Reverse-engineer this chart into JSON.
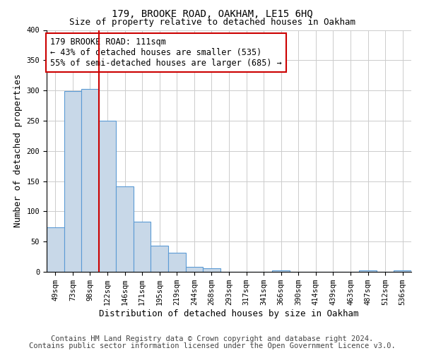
{
  "title": "179, BROOKE ROAD, OAKHAM, LE15 6HQ",
  "subtitle": "Size of property relative to detached houses in Oakham",
  "xlabel": "Distribution of detached houses by size in Oakham",
  "ylabel": "Number of detached properties",
  "bar_labels": [
    "49sqm",
    "73sqm",
    "98sqm",
    "122sqm",
    "146sqm",
    "171sqm",
    "195sqm",
    "219sqm",
    "244sqm",
    "268sqm",
    "293sqm",
    "317sqm",
    "341sqm",
    "366sqm",
    "390sqm",
    "414sqm",
    "439sqm",
    "463sqm",
    "487sqm",
    "512sqm",
    "536sqm"
  ],
  "bar_heights": [
    73,
    299,
    303,
    250,
    141,
    83,
    43,
    31,
    8,
    6,
    0,
    0,
    0,
    2,
    0,
    0,
    0,
    0,
    2,
    0,
    2
  ],
  "bar_color": "#c8d8e8",
  "bar_edge_color": "#5b9bd5",
  "vline_x_index": 2.5,
  "vline_color": "#cc0000",
  "annotation_line1": "179 BROOKE ROAD: 111sqm",
  "annotation_line2": "← 43% of detached houses are smaller (535)",
  "annotation_line3": "55% of semi-detached houses are larger (685) →",
  "annotation_box_color": "#ffffff",
  "annotation_box_edge": "#cc0000",
  "ylim": [
    0,
    400
  ],
  "yticks": [
    0,
    50,
    100,
    150,
    200,
    250,
    300,
    350,
    400
  ],
  "footer_line1": "Contains HM Land Registry data © Crown copyright and database right 2024.",
  "footer_line2": "Contains public sector information licensed under the Open Government Licence v3.0.",
  "bg_color": "#ffffff",
  "grid_color": "#cccccc",
  "title_fontsize": 10,
  "subtitle_fontsize": 9,
  "axis_label_fontsize": 9,
  "tick_fontsize": 7.5,
  "annotation_fontsize": 8.5,
  "footer_fontsize": 7.5
}
